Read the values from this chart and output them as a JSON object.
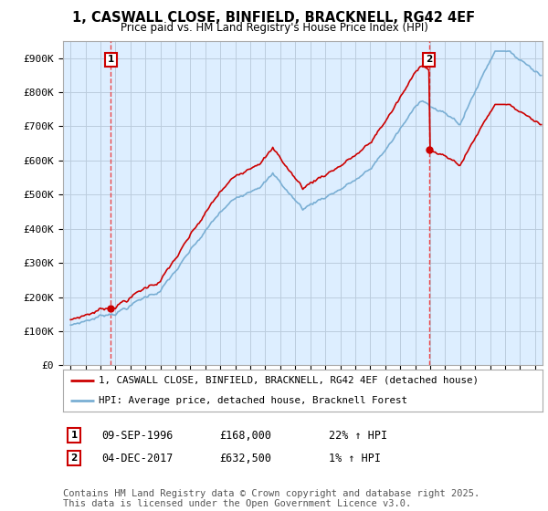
{
  "title_line1": "1, CASWALL CLOSE, BINFIELD, BRACKNELL, RG42 4EF",
  "title_line2": "Price paid vs. HM Land Registry's House Price Index (HPI)",
  "legend_line1": "1, CASWALL CLOSE, BINFIELD, BRACKNELL, RG42 4EF (detached house)",
  "legend_line2": "HPI: Average price, detached house, Bracknell Forest",
  "sale1_label": "1",
  "sale1_date": "09-SEP-1996",
  "sale1_price": "£168,000",
  "sale1_hpi": "22% ↑ HPI",
  "sale1_year": 1996.69,
  "sale1_value": 168000,
  "sale2_label": "2",
  "sale2_date": "04-DEC-2017",
  "sale2_price": "£632,500",
  "sale2_hpi": "1% ↑ HPI",
  "sale2_year": 2017.92,
  "sale2_value": 632500,
  "red_line_color": "#cc0000",
  "blue_line_color": "#7aafd4",
  "background_color": "#ffffff",
  "chart_bg_color": "#ddeeff",
  "grid_color": "#bbccdd",
  "dashed_line_color": "#ee3333",
  "ylim_min": 0,
  "ylim_max": 950000,
  "xlim_min": 1993.5,
  "xlim_max": 2025.5,
  "yticks": [
    0,
    100000,
    200000,
    300000,
    400000,
    500000,
    600000,
    700000,
    800000,
    900000
  ],
  "ytick_labels": [
    "£0",
    "£100K",
    "£200K",
    "£300K",
    "£400K",
    "£500K",
    "£600K",
    "£700K",
    "£800K",
    "£900K"
  ],
  "copyright_text": "Contains HM Land Registry data © Crown copyright and database right 2025.\nThis data is licensed under the Open Government Licence v3.0.",
  "footnote_fontsize": 7.5
}
